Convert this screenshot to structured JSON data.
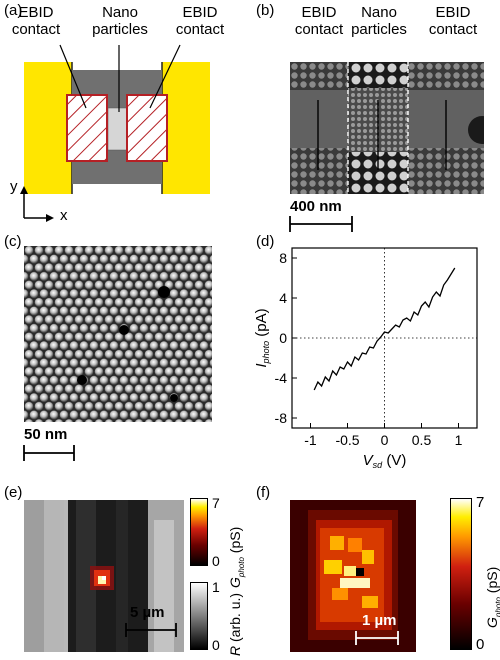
{
  "panels": {
    "a": {
      "label": "(a)",
      "left_contact": "EBID\ncontact",
      "center": "Nano\nparticles",
      "right_contact": "EBID\ncontact",
      "axis_y": "y",
      "axis_x": "x"
    },
    "b": {
      "label": "(b)",
      "left_contact": "EBID\ncontact",
      "center": "Nano\nparticles",
      "right_contact": "EBID\ncontact",
      "scalebar": "400 nm"
    },
    "c": {
      "label": "(c)",
      "scalebar": "50 nm"
    },
    "d": {
      "label": "(d)"
    },
    "e": {
      "label": "(e)",
      "scalebar": "5 µm",
      "cbar_top_max": "7",
      "cbar_top_min": "0",
      "cbar_top_title": "G",
      "cbar_top_sub": "photo",
      "cbar_top_unit": " (pS)",
      "cbar_bot_max": "1",
      "cbar_bot_min": "0",
      "cbar_bot_title": "R",
      "cbar_bot_unit": " (arb. u.)"
    },
    "f": {
      "label": "(f)",
      "scalebar": "1 µm",
      "cbar_max": "7",
      "cbar_min": "0",
      "cbar_title": "G",
      "cbar_sub": "photo",
      "cbar_unit": " (pS)"
    }
  },
  "chart_data": {
    "type": "line",
    "xlabel_main": "V",
    "xlabel_sub": "sd",
    "xlabel_unit": " (V)",
    "ylabel_main": "I",
    "ylabel_sub": "photo",
    "ylabel_unit": " (pA)",
    "xlim": [
      -1.25,
      1.25
    ],
    "ylim": [
      -9,
      9
    ],
    "xticks": [
      -1,
      -0.5,
      0,
      0.5,
      1
    ],
    "xtick_labels": [
      "-1",
      "-0.5",
      "0",
      "0.5",
      "1"
    ],
    "yticks": [
      -8,
      -4,
      0,
      4,
      8
    ],
    "ytick_labels": [
      "-8",
      "-4",
      "0",
      "4",
      "8"
    ],
    "grid": false,
    "series": [
      {
        "x": [
          -0.95,
          -0.9,
          -0.85,
          -0.8,
          -0.75,
          -0.7,
          -0.65,
          -0.6,
          -0.55,
          -0.5,
          -0.45,
          -0.4,
          -0.35,
          -0.3,
          -0.25,
          -0.2,
          -0.15,
          -0.1,
          -0.05,
          0,
          0.05,
          0.1,
          0.15,
          0.2,
          0.25,
          0.3,
          0.35,
          0.4,
          0.45,
          0.5,
          0.55,
          0.6,
          0.65,
          0.7,
          0.75,
          0.8,
          0.85,
          0.9,
          0.95
        ],
        "y": [
          -5.2,
          -4.4,
          -4.8,
          -3.9,
          -4.3,
          -3.3,
          -3.7,
          -2.9,
          -3.1,
          -2.4,
          -2.8,
          -1.9,
          -2.2,
          -1.5,
          -1.6,
          -0.9,
          -1.0,
          -0.3,
          0.1,
          0.6,
          0.5,
          0.9,
          1.3,
          1.1,
          1.8,
          2.0,
          1.7,
          2.6,
          2.3,
          3.2,
          3.6,
          3.1,
          4.1,
          4.6,
          4.2,
          5.3,
          5.8,
          6.4,
          7.0
        ]
      }
    ]
  }
}
